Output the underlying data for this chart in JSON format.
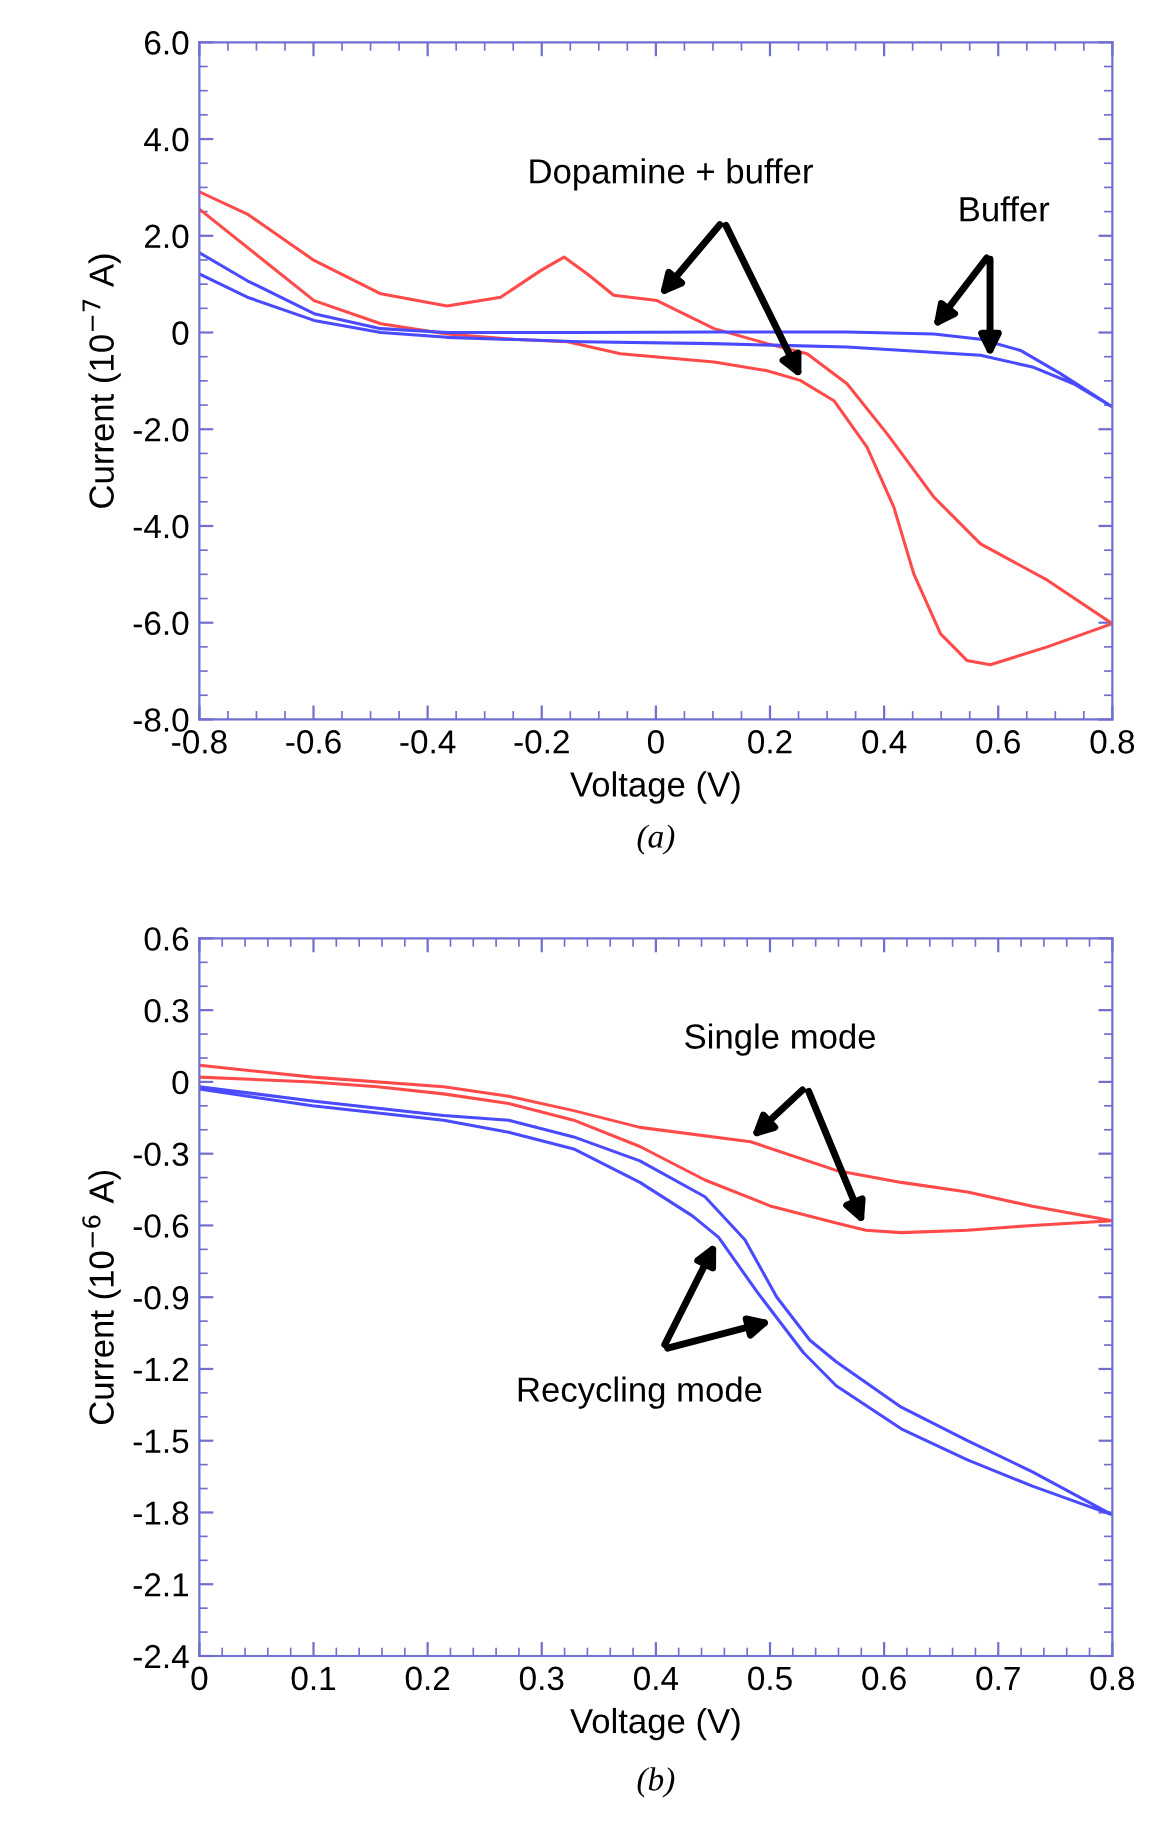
{
  "chart_data": [
    {
      "type": "line",
      "xlabel": "Voltage (V)",
      "ylabel": "Current (10$^{−7}$ A)",
      "xlim": [
        -0.8,
        0.8
      ],
      "ylim": [
        -8,
        6
      ],
      "xticks": [
        {
          "value": -0.8,
          "label": "-0.8"
        },
        {
          "value": -0.6,
          "label": "-0.6"
        },
        {
          "value": -0.4,
          "label": "-0.4"
        },
        {
          "value": -0.2,
          "label": "-0.2"
        },
        {
          "value": 0,
          "label": "0"
        },
        {
          "value": 0.2,
          "label": "0.2"
        },
        {
          "value": 0.4,
          "label": "0.4"
        },
        {
          "value": 0.6,
          "label": "0.6"
        },
        {
          "value": 0.8,
          "label": "0.8"
        }
      ],
      "yticks": [
        {
          "value": 6,
          "label": "6.0"
        },
        {
          "value": 4,
          "label": "4.0"
        },
        {
          "value": 2,
          "label": "2.0"
        },
        {
          "value": 0,
          "label": "0"
        },
        {
          "value": -2,
          "label": "-2.0"
        },
        {
          "value": -4,
          "label": "-4.0"
        },
        {
          "value": -6,
          "label": "-6.0"
        },
        {
          "value": -8,
          "label": "-8.0"
        }
      ],
      "series": [
        {
          "color": "#ff4a4a",
          "x": [
            -0.8,
            -0.716,
            -0.599,
            -0.482,
            -0.366,
            -0.272,
            -0.202,
            -0.161,
            -0.12,
            -0.074,
            0.002,
            0.102,
            0.195,
            0.265,
            0.335,
            0.405,
            0.487,
            0.569,
            0.686,
            0.8,
            0.686,
            0.586,
            0.545,
            0.499,
            0.452,
            0.417,
            0.37,
            0.312,
            0.253,
            0.195,
            0.102,
            -0.062,
            -0.155,
            -0.249,
            -0.366,
            -0.482,
            -0.599,
            -0.716,
            -0.8
          ],
          "values": [
            2.91,
            2.45,
            1.49,
            0.8,
            0.55,
            0.73,
            1.28,
            1.56,
            1.21,
            0.77,
            0.66,
            0.08,
            -0.23,
            -0.44,
            -1.06,
            -2.09,
            -3.4,
            -4.37,
            -5.12,
            -6.02,
            -6.5,
            -6.87,
            -6.78,
            -6.23,
            -4.99,
            -3.61,
            -2.37,
            -1.41,
            -0.99,
            -0.79,
            -0.61,
            -0.44,
            -0.19,
            -0.14,
            -0.03,
            0.18,
            0.66,
            1.76,
            2.55
          ]
        },
        {
          "color": "#4a4aff",
          "x": [
            -0.8,
            -0.716,
            -0.599,
            -0.482,
            -0.366,
            -0.132,
            0.102,
            0.335,
            0.487,
            0.569,
            0.639,
            0.709,
            0.8,
            0.732,
            0.662,
            0.569,
            0.335,
            0.102,
            -0.132,
            -0.366,
            -0.482,
            -0.599,
            -0.716,
            -0.8
          ],
          "values": [
            1.65,
            1.07,
            0.39,
            0.08,
            0.0,
            0.0,
            0.01,
            0.01,
            -0.03,
            -0.14,
            -0.37,
            -0.85,
            -1.54,
            -1.06,
            -0.72,
            -0.47,
            -0.3,
            -0.23,
            -0.19,
            -0.1,
            0.0,
            0.25,
            0.73,
            1.21
          ]
        }
      ],
      "annotations": [
        {
          "text": "Dopamine + buffer",
          "x": 0.0,
          "y": 0.66
        },
        {
          "text": "Buffer",
          "x": 0.48,
          "y": 0.0
        },
        "(a)"
      ]
    },
    {
      "type": "line",
      "xlabel": "Voltage (V)",
      "ylabel": "Current (10$^{−6}$ A)",
      "xlim": [
        0,
        0.8
      ],
      "ylim": [
        -2.4,
        0.6
      ],
      "xticks": [
        0,
        0.1,
        0.2,
        0.3,
        0.4,
        0.5,
        0.6,
        0.7,
        0.8
      ],
      "yticks": [
        {
          "value": 0.6,
          "label": "0.6"
        },
        {
          "value": 0.3,
          "label": "0.3"
        },
        {
          "value": 0,
          "label": "0"
        },
        {
          "value": -0.3,
          "label": "-0.3"
        },
        {
          "value": -0.6,
          "label": "-0.6"
        },
        {
          "value": -0.9,
          "label": "-0.9"
        },
        {
          "value": -1.2,
          "label": "-1.2"
        },
        {
          "value": -1.5,
          "label": "-1.5"
        },
        {
          "value": -1.8,
          "label": "-1.8"
        },
        {
          "value": -2.1,
          "label": "-2.1"
        },
        {
          "value": -2.4,
          "label": "-2.4"
        }
      ],
      "series": [
        {
          "color": "#ff4a4a",
          "x": [
            0,
            0.099,
            0.214,
            0.271,
            0.328,
            0.386,
            0.483,
            0.558,
            0.615,
            0.673,
            0.73,
            0.8,
            0.73,
            0.673,
            0.615,
            0.584,
            0.558,
            0.501,
            0.443,
            0.386,
            0.328,
            0.271,
            0.214,
            0.156,
            0.099,
            0
          ],
          "values": [
            0.07,
            0.02,
            -0.02,
            -0.06,
            -0.12,
            -0.19,
            -0.25,
            -0.37,
            -0.42,
            -0.46,
            -0.52,
            -0.58,
            -0.6,
            -0.62,
            -0.63,
            -0.62,
            -0.59,
            -0.52,
            -0.41,
            -0.27,
            -0.16,
            -0.09,
            -0.05,
            -0.02,
            0.0,
            0.02
          ]
        },
        {
          "color": "#4a4aff",
          "x": [
            0,
            0.099,
            0.214,
            0.271,
            0.328,
            0.386,
            0.443,
            0.478,
            0.506,
            0.535,
            0.558,
            0.615,
            0.673,
            0.73,
            0.8,
            0.73,
            0.673,
            0.615,
            0.558,
            0.529,
            0.489,
            0.455,
            0.432,
            0.386,
            0.328,
            0.271,
            0.214,
            0.099,
            0
          ],
          "values": [
            -0.02,
            -0.08,
            -0.14,
            -0.16,
            -0.23,
            -0.33,
            -0.48,
            -0.66,
            -0.9,
            -1.08,
            -1.17,
            -1.36,
            -1.5,
            -1.63,
            -1.81,
            -1.69,
            -1.58,
            -1.45,
            -1.27,
            -1.13,
            -0.88,
            -0.65,
            -0.56,
            -0.42,
            -0.28,
            -0.21,
            -0.16,
            -0.1,
            -0.03
          ]
        }
      ],
      "annotations": [
        {
          "text": "Single mode",
          "x": 0.48,
          "y": -0.25
        },
        {
          "text": "Recycling mode",
          "x": 0.455,
          "y": -0.65
        },
        "(b)"
      ]
    }
  ]
}
